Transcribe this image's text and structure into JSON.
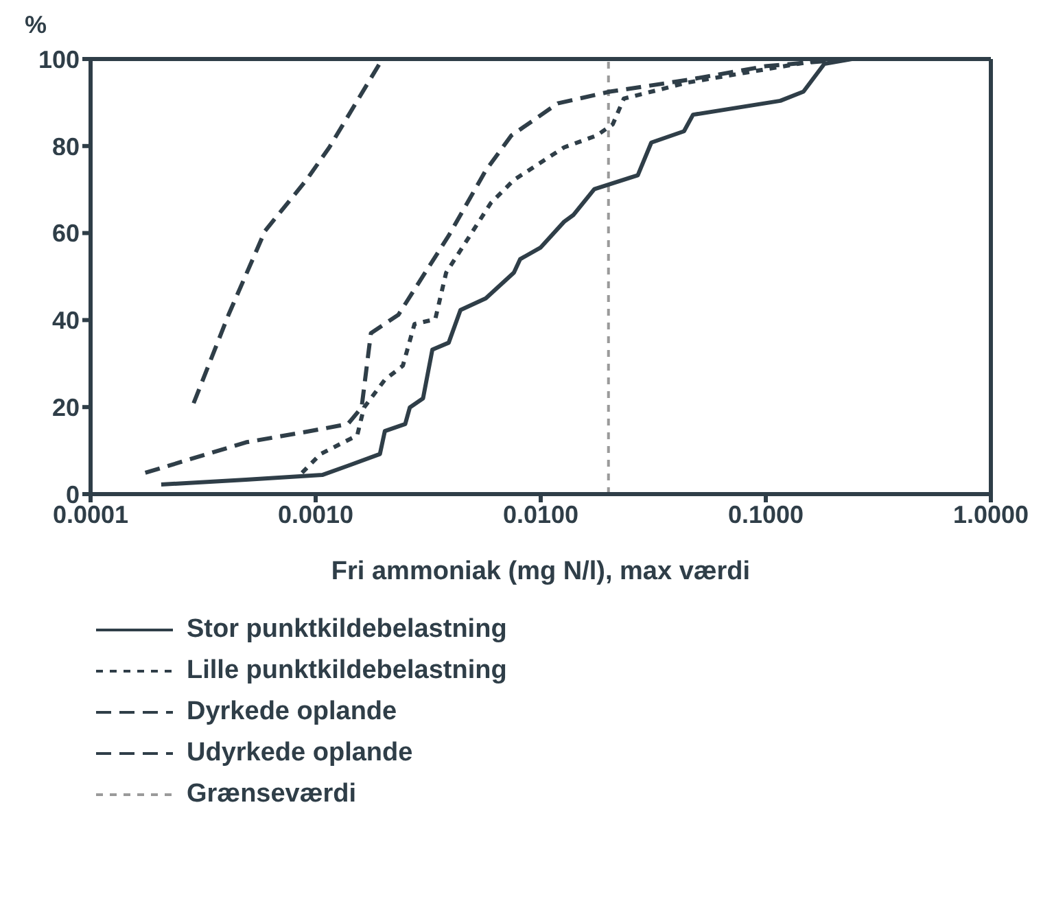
{
  "chart_data": {
    "type": "line",
    "xlabel": "Fri ammoniak (mg N/l), max værdi",
    "ylabel": "%",
    "log": "x",
    "xlim": [
      0.0001,
      1
    ],
    "xticks": [
      0.0001,
      {
        "value": 0.001,
        "label": "0.0010"
      },
      {
        "value": 0.01,
        "label": "0.0100"
      },
      {
        "value": 0.1,
        "label": "0.1000"
      },
      {
        "value": 1,
        "label": "1.0000"
      }
    ],
    "ylim": [
      0,
      100
    ],
    "yticks": [
      0,
      20,
      40,
      60,
      80,
      100
    ],
    "grid": false,
    "legend": "bottom",
    "marker": "none",
    "series": [
      {
        "name": "Stor punktkildebelastning",
        "color": "#2f3e48",
        "line_style": "solid",
        "x": [
          0.000206,
          0.00049,
          0.00107,
          0.00139,
          0.00193,
          0.00203,
          0.0025,
          0.00262,
          0.003,
          0.0033,
          0.0039,
          0.0044,
          0.0057,
          0.0076,
          0.0081,
          0.01,
          0.0127,
          0.014,
          0.0173,
          0.027,
          0.031,
          0.0433,
          0.0475,
          0.116,
          0.147,
          0.182,
          0.241
        ],
        "values": [
          2.2,
          3.3,
          4.4,
          6.5,
          9.2,
          14.5,
          16.1,
          19.9,
          22,
          33.2,
          34.8,
          42.3,
          45,
          50.9,
          54,
          56.7,
          62.6,
          64.2,
          70.1,
          73.3,
          80.8,
          83.4,
          87.2,
          90.4,
          92.5,
          98.9,
          100
        ]
      },
      {
        "name": "Lille punktkildebelastning",
        "color": "#2f3e48",
        "line_style": "dotted",
        "x": [
          0.00087,
          0.00105,
          0.00153,
          0.00164,
          0.00203,
          0.00244,
          0.00275,
          0.0034,
          0.0038,
          0.005,
          0.006,
          0.0076,
          0.0127,
          0.0177,
          0.0209,
          0.0234,
          0.045,
          0.08,
          0.186
        ],
        "values": [
          4.9,
          9.2,
          13.5,
          19.9,
          26.3,
          29.5,
          39.1,
          40.2,
          50.9,
          60.5,
          66.9,
          72.2,
          79.7,
          82.4,
          85,
          90.9,
          94.6,
          96.8,
          100
        ]
      },
      {
        "name": "Dyrkede oplande",
        "color": "#2f3e48",
        "line_style": "dashed",
        "x": [
          0.000175,
          0.00049,
          0.00095,
          0.00139,
          0.0016,
          0.00176,
          0.00233,
          0.0039,
          0.0057,
          0.0074,
          0.0119,
          0.0203,
          0.045,
          0.101,
          0.24
        ],
        "values": [
          4.9,
          11.9,
          14.5,
          16.1,
          19.9,
          37,
          41.2,
          59.4,
          74.4,
          82.4,
          89.8,
          92.5,
          95.2,
          98.4,
          100
        ]
      },
      {
        "name": "Udyrkede oplande",
        "color": "#2f3e48",
        "line_style": "dashed",
        "x": [
          0.000287,
          0.00041,
          0.000596,
          0.00091,
          0.00115,
          0.00153,
          0.00198
        ],
        "values": [
          20.9,
          41.2,
          60.5,
          72.2,
          79.7,
          90.4,
          100
        ]
      }
    ],
    "ref_lines": [
      {
        "axis": "x",
        "value": 0.02,
        "label": "Grænseværdi",
        "color": "#9a9a9a",
        "line_style": "dotted"
      }
    ]
  }
}
